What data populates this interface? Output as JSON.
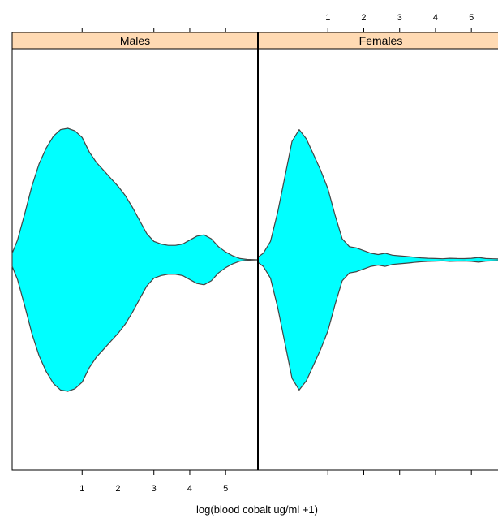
{
  "chart_data": {
    "type": "violin",
    "xlabel": "log(blood cobalt ug/ml  +1)",
    "xlim": [
      -0.95,
      5.9
    ],
    "ticks": [
      1,
      2,
      3,
      4,
      5
    ],
    "tick_labels": [
      "1",
      "2",
      "3",
      "4",
      "5"
    ],
    "fill_color": "#00FFFF",
    "outline_color": "#444444",
    "strip_color": "#FFDAB3",
    "panels": [
      {
        "name": "Males",
        "density": [
          [
            -0.95,
            0.05
          ],
          [
            -0.8,
            0.15
          ],
          [
            -0.6,
            0.35
          ],
          [
            -0.4,
            0.56
          ],
          [
            -0.2,
            0.73
          ],
          [
            0.0,
            0.85
          ],
          [
            0.2,
            0.94
          ],
          [
            0.4,
            0.99
          ],
          [
            0.6,
            1.0
          ],
          [
            0.8,
            0.98
          ],
          [
            1.0,
            0.93
          ],
          [
            1.2,
            0.82
          ],
          [
            1.4,
            0.74
          ],
          [
            1.6,
            0.68
          ],
          [
            1.8,
            0.62
          ],
          [
            2.0,
            0.56
          ],
          [
            2.2,
            0.49
          ],
          [
            2.4,
            0.4
          ],
          [
            2.6,
            0.3
          ],
          [
            2.8,
            0.2
          ],
          [
            3.0,
            0.14
          ],
          [
            3.2,
            0.12
          ],
          [
            3.4,
            0.11
          ],
          [
            3.6,
            0.11
          ],
          [
            3.8,
            0.12
          ],
          [
            4.0,
            0.15
          ],
          [
            4.2,
            0.18
          ],
          [
            4.4,
            0.19
          ],
          [
            4.6,
            0.16
          ],
          [
            4.8,
            0.1
          ],
          [
            5.0,
            0.06
          ],
          [
            5.2,
            0.03
          ],
          [
            5.4,
            0.01
          ],
          [
            5.6,
            0.003
          ],
          [
            5.9,
            0.0
          ]
        ]
      },
      {
        "name": "Females",
        "density": [
          [
            -0.95,
            0.02
          ],
          [
            -0.8,
            0.05
          ],
          [
            -0.6,
            0.14
          ],
          [
            -0.4,
            0.36
          ],
          [
            -0.2,
            0.63
          ],
          [
            0.0,
            0.9
          ],
          [
            0.2,
            0.99
          ],
          [
            0.4,
            0.92
          ],
          [
            0.6,
            0.8
          ],
          [
            0.8,
            0.68
          ],
          [
            1.0,
            0.54
          ],
          [
            1.2,
            0.34
          ],
          [
            1.4,
            0.16
          ],
          [
            1.6,
            0.1
          ],
          [
            1.8,
            0.09
          ],
          [
            2.0,
            0.07
          ],
          [
            2.2,
            0.05
          ],
          [
            2.4,
            0.04
          ],
          [
            2.6,
            0.05
          ],
          [
            2.8,
            0.035
          ],
          [
            3.0,
            0.03
          ],
          [
            3.2,
            0.025
          ],
          [
            3.4,
            0.02
          ],
          [
            3.6,
            0.015
          ],
          [
            3.8,
            0.012
          ],
          [
            4.0,
            0.01
          ],
          [
            4.2,
            0.008
          ],
          [
            4.4,
            0.012
          ],
          [
            4.6,
            0.01
          ],
          [
            4.8,
            0.009
          ],
          [
            5.0,
            0.012
          ],
          [
            5.2,
            0.018
          ],
          [
            5.4,
            0.01
          ],
          [
            5.6,
            0.008
          ],
          [
            5.9,
            0.006
          ]
        ]
      }
    ]
  }
}
